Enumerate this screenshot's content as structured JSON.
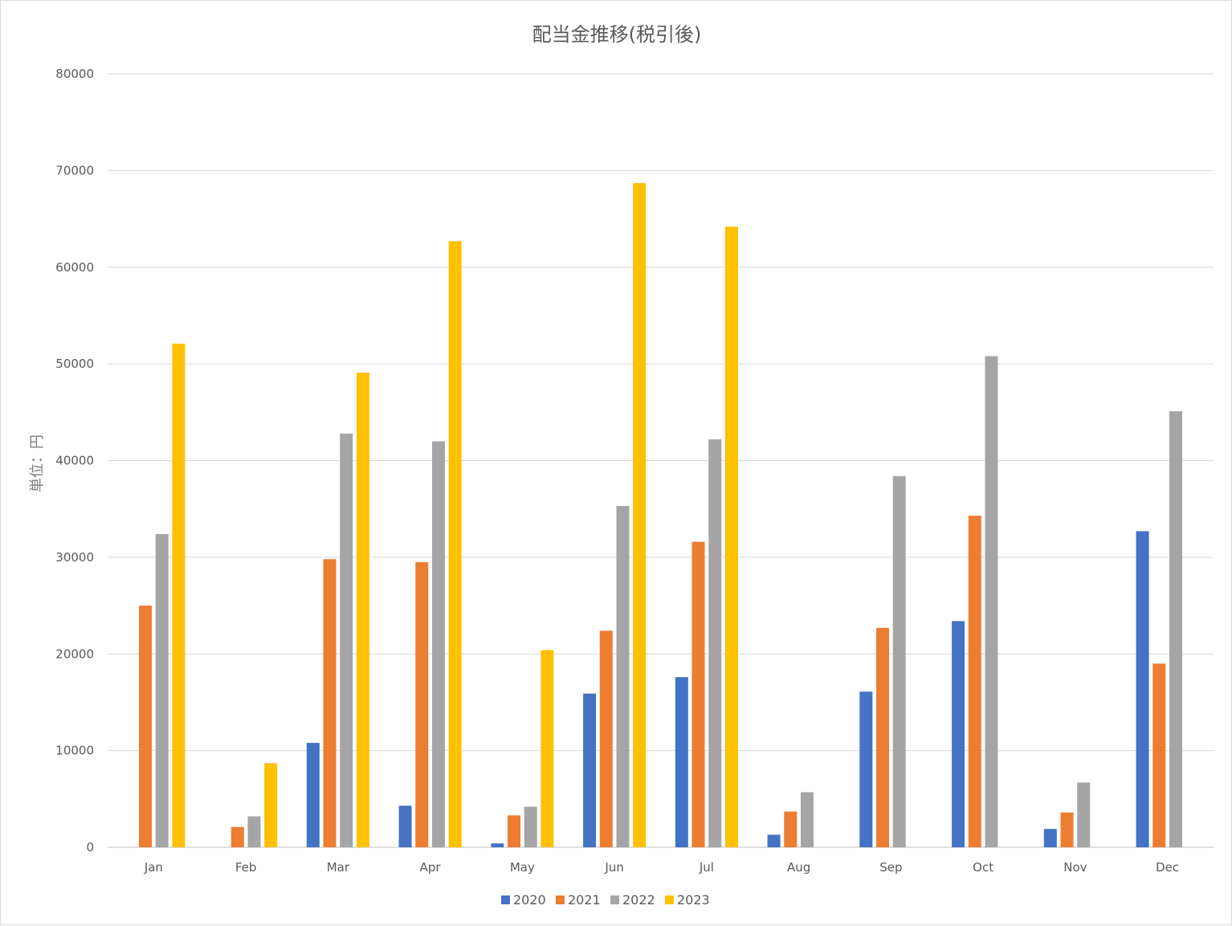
{
  "chart_data": {
    "type": "bar",
    "title": "配当金推移(税引後)",
    "xlabel": "",
    "ylabel": "単位：円",
    "ylim": [
      0,
      80000
    ],
    "yticks": [
      0,
      10000,
      20000,
      30000,
      40000,
      50000,
      60000,
      70000,
      80000
    ],
    "grid": true,
    "legend_position": "bottom",
    "categories": [
      "Jan",
      "Feb",
      "Mar",
      "Apr",
      "May",
      "Jun",
      "Jul",
      "Aug",
      "Sep",
      "Oct",
      "Nov",
      "Dec"
    ],
    "series": [
      {
        "name": "2020",
        "color": "#4472c4",
        "values": [
          0,
          0,
          10800,
          4300,
          400,
          15900,
          17600,
          1300,
          16100,
          23400,
          1900,
          32700
        ]
      },
      {
        "name": "2021",
        "color": "#ed7d31",
        "values": [
          25000,
          2100,
          29800,
          29500,
          3300,
          22400,
          31600,
          3700,
          22700,
          34300,
          3600,
          19000
        ]
      },
      {
        "name": "2022",
        "color": "#a5a5a5",
        "values": [
          32400,
          3200,
          42800,
          42000,
          4200,
          35300,
          42200,
          5700,
          38400,
          50800,
          6700,
          45100
        ]
      },
      {
        "name": "2023",
        "color": "#ffc000",
        "values": [
          52100,
          8700,
          49100,
          62700,
          20400,
          68700,
          64200,
          null,
          null,
          null,
          null,
          null
        ]
      }
    ]
  }
}
